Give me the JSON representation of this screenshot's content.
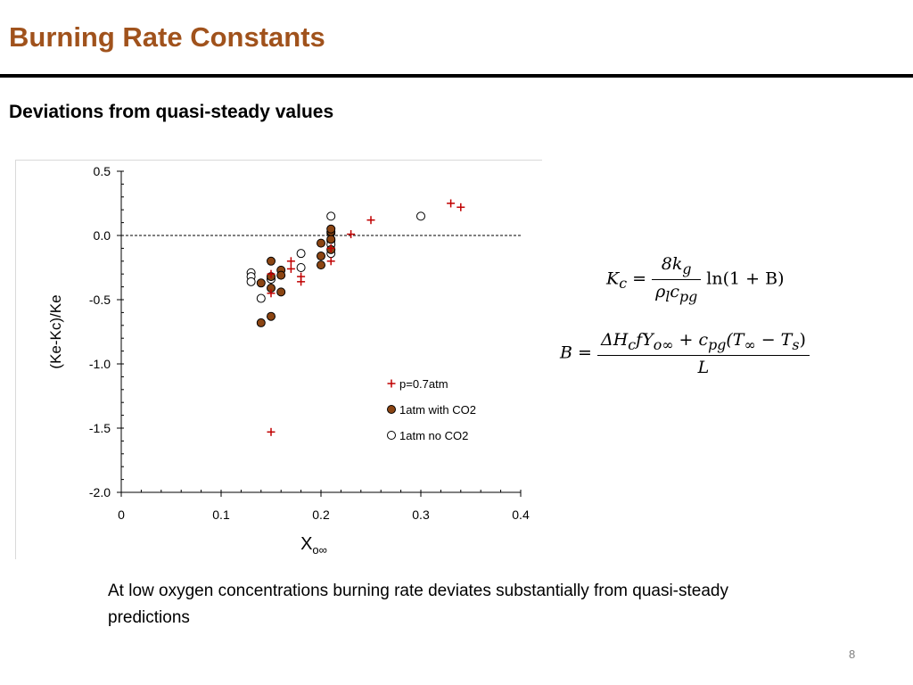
{
  "slide": {
    "title": "Burning Rate Constants",
    "subtitle": "Deviations from quasi-steady values",
    "body": "At low oxygen concentrations burning rate deviates substantially from quasi-steady predictions",
    "page_number": "8"
  },
  "formulas": {
    "kc": {
      "lhs": "K",
      "lhs_sub": "c",
      "num": "8k",
      "num_sub": "g",
      "den_rho": "ρ",
      "den_rho_sub": "l",
      "den_c": "c",
      "den_c_sub": "pg",
      "tail": "ln(1 + B)"
    },
    "b": {
      "lhs": "B",
      "num": "ΔH",
      "num_sub_c": "c",
      "num_fy": "fY",
      "num_sub_oinf": "o∞",
      "num_plus": "+ c",
      "num_sub_pg": "pg",
      "num_T": "(T",
      "num_sub_inf": "∞",
      "num_minus": " − T",
      "num_sub_s": "s",
      "num_close": ")",
      "den": "L"
    }
  },
  "chart_data": {
    "type": "scatter",
    "xlabel": "X",
    "xlabel_sub": "o∞",
    "ylabel": "(Ke-Kc)/Ke",
    "xlim": [
      0,
      0.4
    ],
    "ylim": [
      -2.0,
      0.5
    ],
    "x_ticks": [
      "0",
      "0.1",
      "0.2",
      "0.3",
      "0.4"
    ],
    "y_ticks": [
      "0.5",
      "0.0",
      "-0.5",
      "-1.0",
      "-1.5",
      "-2.0"
    ],
    "reference_line_y": 0.0,
    "grid": false,
    "legend_position": "lower-right",
    "colors": {
      "plus": "#c00000",
      "filled": "#8b4513",
      "open": "#ffffff",
      "edge": "#000000"
    },
    "series": [
      {
        "name": "p=0.7atm",
        "marker": "plus",
        "points": [
          [
            0.15,
            -1.53
          ],
          [
            0.15,
            -0.45
          ],
          [
            0.15,
            -0.3
          ],
          [
            0.17,
            -0.2
          ],
          [
            0.17,
            -0.26
          ],
          [
            0.18,
            -0.32
          ],
          [
            0.18,
            -0.36
          ],
          [
            0.21,
            -0.2
          ],
          [
            0.21,
            -0.1
          ],
          [
            0.23,
            0.01
          ],
          [
            0.25,
            0.12
          ],
          [
            0.33,
            0.25
          ],
          [
            0.34,
            0.22
          ]
        ]
      },
      {
        "name": "1atm with CO2",
        "marker": "filled-circle",
        "points": [
          [
            0.14,
            -0.68
          ],
          [
            0.14,
            -0.37
          ],
          [
            0.15,
            -0.63
          ],
          [
            0.15,
            -0.41
          ],
          [
            0.15,
            -0.32
          ],
          [
            0.15,
            -0.2
          ],
          [
            0.16,
            -0.27
          ],
          [
            0.16,
            -0.31
          ],
          [
            0.16,
            -0.44
          ],
          [
            0.2,
            -0.06
          ],
          [
            0.2,
            -0.16
          ],
          [
            0.2,
            -0.23
          ],
          [
            0.21,
            -0.11
          ],
          [
            0.21,
            -0.03
          ],
          [
            0.21,
            0.03
          ],
          [
            0.21,
            0.05
          ]
        ]
      },
      {
        "name": "1atm no CO2",
        "marker": "open-circle",
        "points": [
          [
            0.13,
            -0.29
          ],
          [
            0.13,
            -0.32
          ],
          [
            0.13,
            -0.36
          ],
          [
            0.14,
            -0.49
          ],
          [
            0.15,
            -0.34
          ],
          [
            0.18,
            -0.14
          ],
          [
            0.18,
            -0.25
          ],
          [
            0.21,
            0.15
          ],
          [
            0.21,
            0.02
          ],
          [
            0.21,
            -0.04
          ],
          [
            0.21,
            -0.07
          ],
          [
            0.21,
            -0.14
          ],
          [
            0.3,
            0.15
          ]
        ]
      }
    ]
  }
}
